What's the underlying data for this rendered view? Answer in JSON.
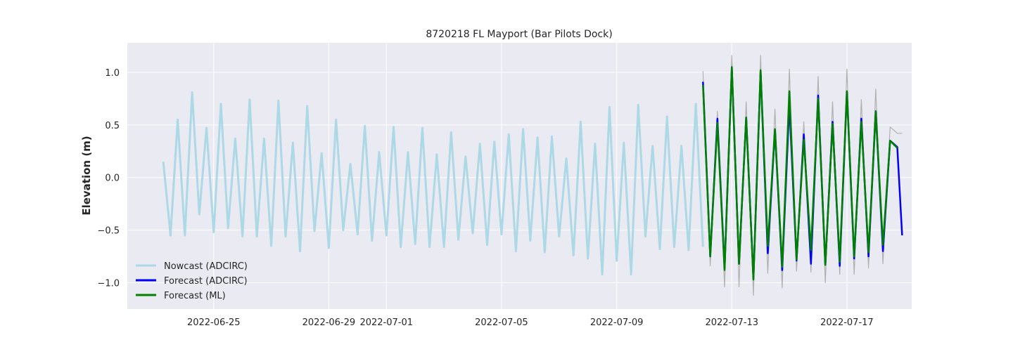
{
  "chart_data": {
    "type": "line",
    "title": "8720218 FL Mayport (Bar Pilots Dock)",
    "xlabel": "",
    "ylabel": "Elevation (m)",
    "x_axis": "date",
    "xlim": [
      "2022-06-22T00:00",
      "2022-07-19T06:00"
    ],
    "ylim": [
      -1.25,
      1.28
    ],
    "x_ticks": [
      "2022-06-25",
      "2022-06-29",
      "2022-07-01",
      "2022-07-05",
      "2022-07-09",
      "2022-07-13",
      "2022-07-17"
    ],
    "y_ticks": [
      -1.0,
      -0.5,
      0.0,
      0.5,
      1.0
    ],
    "y_tick_labels": [
      "−1.0",
      "−0.5",
      "0.0",
      "0.5",
      "1.0"
    ],
    "grid": true,
    "legend_position": "lower-left",
    "series": [
      {
        "name": "Nowcast (ADCIRC)",
        "color": "#add8e6",
        "x": [
          "2022-06-23T06:00",
          "2022-06-23T12:00",
          "2022-06-23T18:00",
          "2022-06-24T00:00",
          "2022-06-24T06:00",
          "2022-06-24T12:00",
          "2022-06-24T18:00",
          "2022-06-25T00:00",
          "2022-06-25T06:00",
          "2022-06-25T12:00",
          "2022-06-25T18:00",
          "2022-06-26T00:00",
          "2022-06-26T06:00",
          "2022-06-26T12:00",
          "2022-06-26T18:00",
          "2022-06-27T00:00",
          "2022-06-27T06:00",
          "2022-06-27T12:00",
          "2022-06-27T18:00",
          "2022-06-28T00:00",
          "2022-06-28T06:00",
          "2022-06-28T12:00",
          "2022-06-28T18:00",
          "2022-06-29T00:00",
          "2022-06-29T06:00",
          "2022-06-29T12:00",
          "2022-06-29T18:00",
          "2022-06-30T00:00",
          "2022-06-30T06:00",
          "2022-06-30T12:00",
          "2022-06-30T18:00",
          "2022-07-01T00:00",
          "2022-07-01T06:00",
          "2022-07-01T12:00",
          "2022-07-01T18:00",
          "2022-07-02T00:00",
          "2022-07-02T06:00",
          "2022-07-02T12:00",
          "2022-07-02T18:00",
          "2022-07-03T00:00",
          "2022-07-03T06:00",
          "2022-07-03T12:00",
          "2022-07-03T18:00",
          "2022-07-04T00:00",
          "2022-07-04T06:00",
          "2022-07-04T12:00",
          "2022-07-04T18:00",
          "2022-07-05T00:00",
          "2022-07-05T06:00",
          "2022-07-05T12:00",
          "2022-07-05T18:00",
          "2022-07-06T00:00",
          "2022-07-06T06:00",
          "2022-07-06T12:00",
          "2022-07-06T18:00",
          "2022-07-07T00:00",
          "2022-07-07T06:00",
          "2022-07-07T12:00",
          "2022-07-07T18:00",
          "2022-07-08T00:00",
          "2022-07-08T06:00",
          "2022-07-08T12:00",
          "2022-07-08T18:00",
          "2022-07-09T00:00",
          "2022-07-09T06:00",
          "2022-07-09T12:00",
          "2022-07-09T18:00",
          "2022-07-10T00:00",
          "2022-07-10T06:00",
          "2022-07-10T12:00",
          "2022-07-10T18:00",
          "2022-07-11T00:00",
          "2022-07-11T06:00",
          "2022-07-11T12:00",
          "2022-07-11T18:00",
          "2022-07-12T00:00"
        ],
        "values": [
          0.15,
          -0.55,
          0.55,
          -0.55,
          0.81,
          -0.35,
          0.47,
          -0.52,
          0.7,
          -0.48,
          0.37,
          -0.56,
          0.74,
          -0.56,
          0.37,
          -0.65,
          0.73,
          -0.56,
          0.33,
          -0.7,
          0.68,
          -0.51,
          0.23,
          -0.67,
          0.55,
          -0.5,
          0.13,
          -0.54,
          0.49,
          -0.6,
          0.24,
          -0.55,
          0.48,
          -0.66,
          0.24,
          -0.63,
          0.47,
          -0.66,
          0.22,
          -0.66,
          0.43,
          -0.59,
          0.2,
          -0.53,
          0.32,
          -0.64,
          0.34,
          -0.54,
          0.41,
          -0.7,
          0.46,
          -0.6,
          0.38,
          -0.71,
          0.39,
          -0.56,
          0.18,
          -0.74,
          0.53,
          -0.77,
          0.32,
          -0.92,
          0.67,
          -0.79,
          0.33,
          -0.92,
          0.69,
          -0.56,
          0.3,
          -0.68,
          0.58,
          -0.66,
          0.3,
          -0.69,
          0.7,
          -0.66
        ]
      },
      {
        "name": "Forecast (ADCIRC)",
        "color": "#0000ff",
        "x": [
          "2022-07-12T00:00",
          "2022-07-12T06:00",
          "2022-07-12T12:00",
          "2022-07-12T18:00",
          "2022-07-13T00:00",
          "2022-07-13T06:00",
          "2022-07-13T12:00",
          "2022-07-13T18:00",
          "2022-07-14T00:00",
          "2022-07-14T06:00",
          "2022-07-14T12:00",
          "2022-07-14T18:00",
          "2022-07-15T00:00",
          "2022-07-15T06:00",
          "2022-07-15T12:00",
          "2022-07-15T18:00",
          "2022-07-16T00:00",
          "2022-07-16T06:00",
          "2022-07-16T12:00",
          "2022-07-16T18:00",
          "2022-07-17T00:00",
          "2022-07-17T06:00",
          "2022-07-17T12:00",
          "2022-07-17T18:00",
          "2022-07-18T00:00",
          "2022-07-18T06:00",
          "2022-07-18T12:00",
          "2022-07-18T18:00",
          "2022-07-18T22:00"
        ],
        "values": [
          0.91,
          -0.75,
          0.56,
          -0.86,
          1.05,
          -0.82,
          0.57,
          -0.96,
          1.01,
          -0.72,
          0.45,
          -0.88,
          0.7,
          -0.79,
          0.41,
          -0.82,
          0.78,
          -0.83,
          0.53,
          -0.84,
          0.81,
          -0.77,
          0.56,
          -0.75,
          0.63,
          -0.7,
          0.35,
          0.29,
          -0.55
        ]
      },
      {
        "name": "Forecast (ML)",
        "color": "#008000",
        "x": [
          "2022-07-12T00:00",
          "2022-07-12T06:00",
          "2022-07-12T12:00",
          "2022-07-12T18:00",
          "2022-07-13T00:00",
          "2022-07-13T06:00",
          "2022-07-13T12:00",
          "2022-07-13T18:00",
          "2022-07-14T00:00",
          "2022-07-14T06:00",
          "2022-07-14T12:00",
          "2022-07-14T18:00",
          "2022-07-15T00:00",
          "2022-07-15T06:00",
          "2022-07-15T12:00",
          "2022-07-15T18:00",
          "2022-07-16T00:00",
          "2022-07-16T06:00",
          "2022-07-16T12:00",
          "2022-07-16T18:00",
          "2022-07-17T00:00",
          "2022-07-17T06:00",
          "2022-07-17T12:00",
          "2022-07-17T18:00",
          "2022-07-18T00:00",
          "2022-07-18T06:00",
          "2022-07-18T12:00",
          "2022-07-18T18:00"
        ],
        "values": [
          0.88,
          -0.75,
          0.52,
          -0.88,
          1.05,
          -0.82,
          0.57,
          -0.97,
          1.02,
          -0.65,
          0.46,
          -0.85,
          0.82,
          -0.78,
          0.36,
          -0.69,
          0.75,
          -0.83,
          0.51,
          -0.8,
          0.82,
          -0.75,
          0.53,
          -0.71,
          0.63,
          -0.64,
          0.35,
          0.28
        ]
      },
      {
        "name": "",
        "color": "#b0b0b0",
        "x": [
          "2022-07-12T00:00",
          "2022-07-12T06:00",
          "2022-07-12T12:00",
          "2022-07-12T18:00",
          "2022-07-13T00:00",
          "2022-07-13T06:00",
          "2022-07-13T12:00",
          "2022-07-13T18:00",
          "2022-07-14T00:00",
          "2022-07-14T06:00",
          "2022-07-14T12:00",
          "2022-07-14T18:00",
          "2022-07-15T00:00",
          "2022-07-15T06:00",
          "2022-07-15T12:00",
          "2022-07-15T18:00",
          "2022-07-16T00:00",
          "2022-07-16T06:00",
          "2022-07-16T12:00",
          "2022-07-16T18:00",
          "2022-07-17T00:00",
          "2022-07-17T06:00",
          "2022-07-17T12:00",
          "2022-07-17T18:00",
          "2022-07-18T00:00",
          "2022-07-18T06:00",
          "2022-07-18T12:00",
          "2022-07-18T18:00",
          "2022-07-18T22:00"
        ],
        "values": [
          1.01,
          -0.84,
          0.63,
          -1.04,
          1.16,
          -1.04,
          0.72,
          -1.12,
          1.16,
          -0.91,
          0.65,
          -1.05,
          1.03,
          -0.89,
          0.53,
          -0.9,
          0.96,
          -1.0,
          0.72,
          -0.92,
          1.03,
          -0.92,
          0.74,
          -0.86,
          0.84,
          -0.82,
          0.48,
          0.42,
          0.42
        ]
      }
    ]
  }
}
